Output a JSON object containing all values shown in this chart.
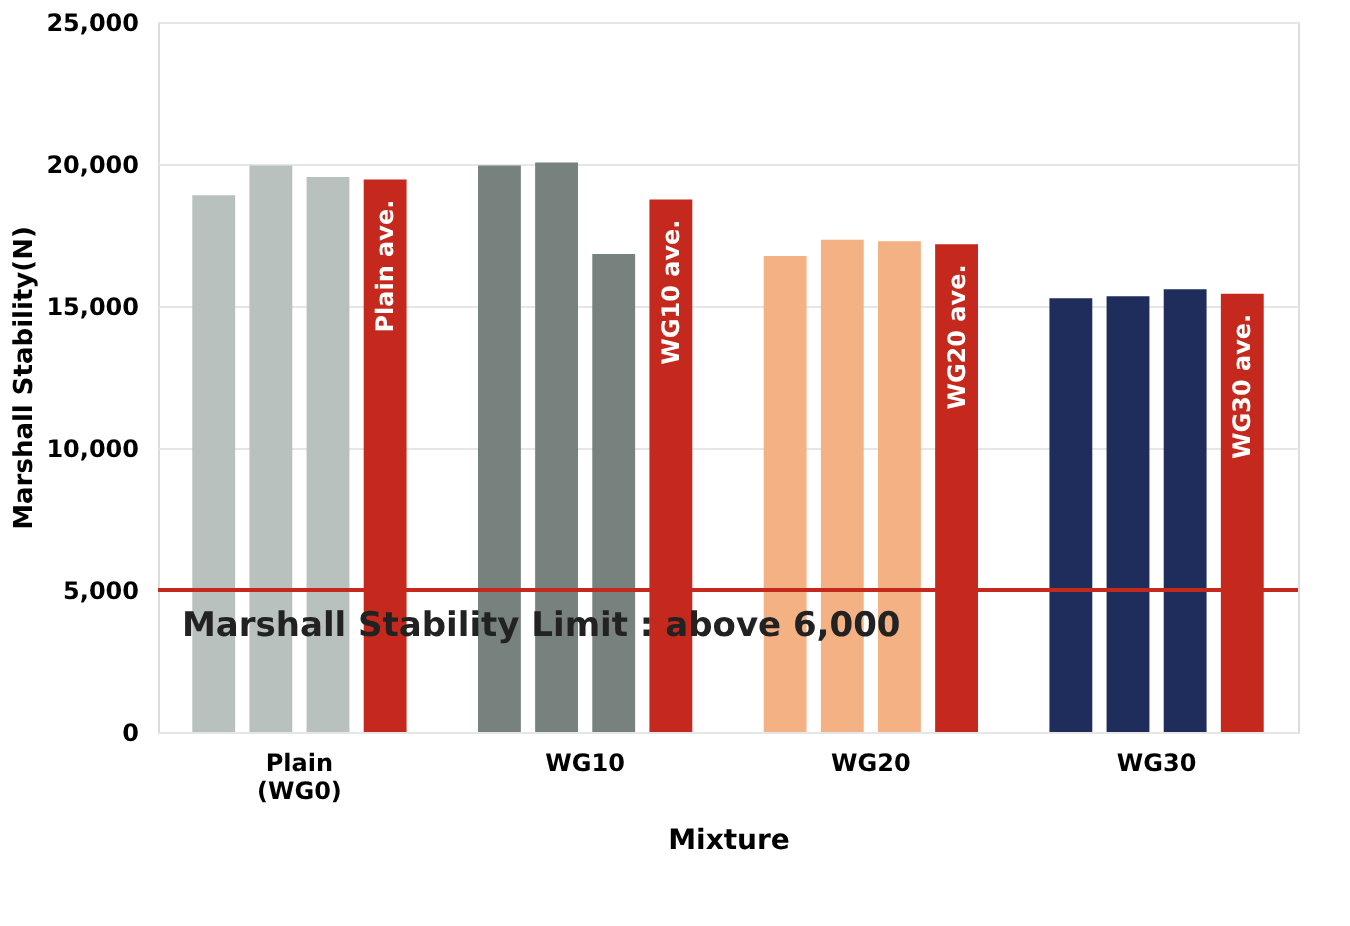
{
  "chart_data": {
    "type": "bar",
    "xlabel": "Mixture",
    "ylabel": "Marshall Stability(N)",
    "categories": [
      "Plain\n(WG0)",
      "WG10",
      "WG20",
      "WG30"
    ],
    "series": [
      {
        "colors": [
          "#b9c1bf",
          "#77817e",
          "#f4b183",
          "#1f2d5c"
        ],
        "values": [
          18900,
          19950,
          16760,
          15270
        ]
      },
      {
        "colors": [
          "#b9c1bf",
          "#77817e",
          "#f4b183",
          "#1f2d5c"
        ],
        "values": [
          19950,
          20050,
          17330,
          15340
        ]
      },
      {
        "colors": [
          "#b9c1bf",
          "#77817e",
          "#f4b183",
          "#1f2d5c"
        ],
        "values": [
          19540,
          16830,
          17280,
          15590
        ]
      },
      {
        "color": "#c5281c",
        "values": [
          19450,
          18750,
          17170,
          15430
        ],
        "value_labels": [
          "Plain ave.",
          "WG10 ave.",
          "WG20 ave.",
          "WG30 ave."
        ]
      }
    ],
    "ylim": [
      0,
      25000
    ],
    "yticks": [
      0,
      {
        "value": 5000,
        "label": "5,000"
      },
      {
        "value": 10000,
        "label": "10,000"
      },
      {
        "value": 15000,
        "label": "15,000"
      },
      {
        "value": 20000,
        "label": "20,000"
      },
      {
        "value": 25000,
        "label": "25,000"
      }
    ],
    "grid": "y",
    "ref_lines": [
      {
        "axis": "y",
        "value": 5000,
        "label": "Marshall Stability Limit : above 6,000",
        "color": "#c5281c"
      }
    ]
  }
}
